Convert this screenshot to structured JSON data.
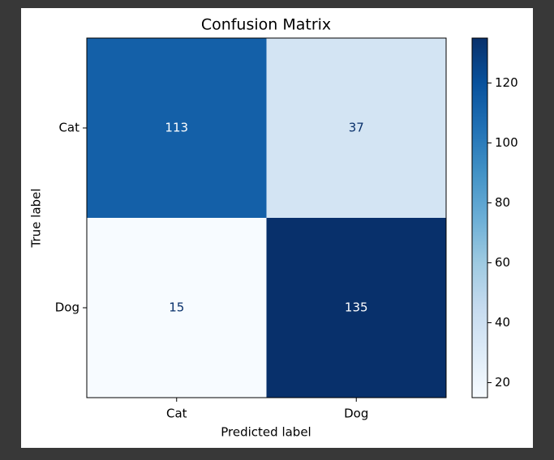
{
  "chart_data": {
    "type": "heatmap",
    "title": "Confusion Matrix",
    "xlabel": "Predicted label",
    "ylabel": "True label",
    "x_categories": [
      "Cat",
      "Dog"
    ],
    "y_categories": [
      "Cat",
      "Dog"
    ],
    "values": [
      [
        113,
        37
      ],
      [
        15,
        135
      ]
    ],
    "colormap": "Blues",
    "zlim": [
      15,
      135
    ],
    "zticks": [
      20,
      40,
      60,
      80,
      100,
      120
    ]
  }
}
